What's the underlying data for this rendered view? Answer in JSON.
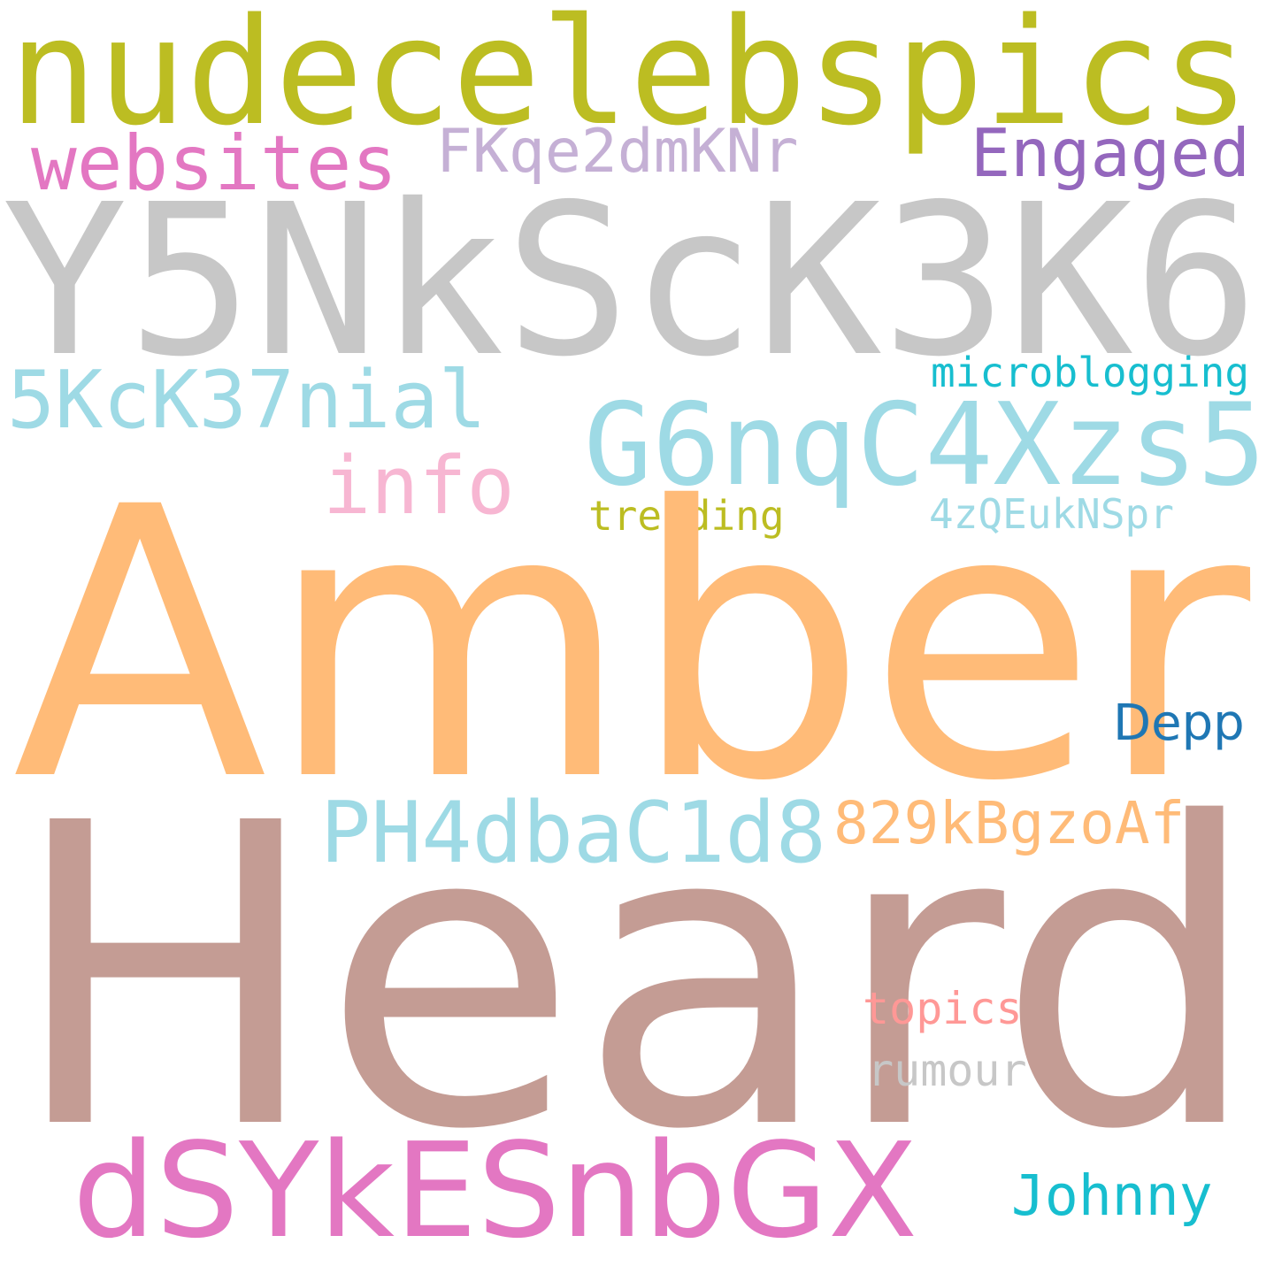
{
  "words": [
    {
      "text": "nudecelebspics",
      "color": "#bcbd22"
    },
    {
      "text": "websites",
      "color": "#e377c2"
    },
    {
      "text": "FKqe2dmKNr",
      "color": "#c5b0d5"
    },
    {
      "text": "Engaged",
      "color": "#9467bd"
    },
    {
      "text": "Y5NkScK3K6",
      "color": "#c7c7c7"
    },
    {
      "text": "microblogging",
      "color": "#17becf"
    },
    {
      "text": "5KcK37nial",
      "color": "#9edae5"
    },
    {
      "text": "G6nqC4Xzs5",
      "color": "#9edae5"
    },
    {
      "text": "info",
      "color": "#f7b6d2"
    },
    {
      "text": "trending",
      "color": "#bcbd22"
    },
    {
      "text": "4zQEukNSpr",
      "color": "#9edae5"
    },
    {
      "text": "Amber",
      "color": "#ffbb78"
    },
    {
      "text": "Depp",
      "color": "#1f77b4"
    },
    {
      "text": "PH4dbaC1d8",
      "color": "#9edae5"
    },
    {
      "text": "829kBgzoAf",
      "color": "#ffbb78"
    },
    {
      "text": "Heard",
      "color": "#c49c94"
    },
    {
      "text": "topics",
      "color": "#ff9896"
    },
    {
      "text": "rumour",
      "color": "#c7c7c7"
    },
    {
      "text": "dSYkESnbGX",
      "color": "#e377c2"
    },
    {
      "text": "Johnny",
      "color": "#17becf"
    }
  ]
}
